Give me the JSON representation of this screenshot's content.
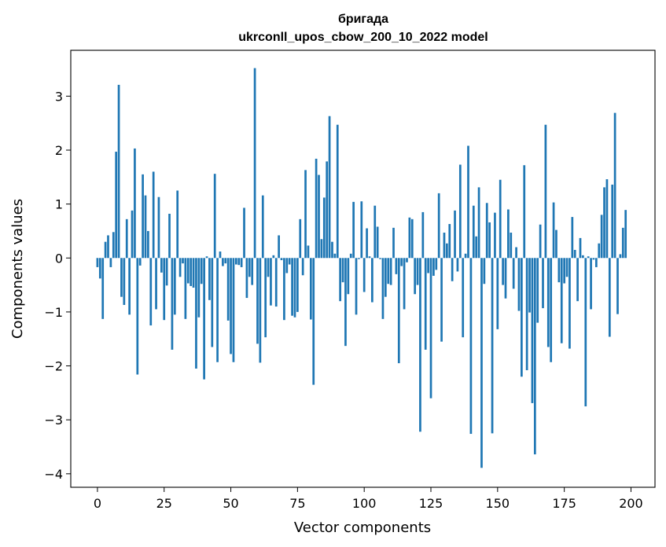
{
  "chart_data": {
    "type": "bar",
    "title_line1": "бригада",
    "title_line2": "ukrconll_upos_cbow_200_10_2022 model",
    "xlabel": "Vector components",
    "ylabel": "Components values",
    "xlim": [
      -10,
      209
    ],
    "ylim": [
      -4.25,
      3.85
    ],
    "xticks": [
      0,
      25,
      50,
      75,
      100,
      125,
      150,
      175,
      200
    ],
    "yticks": [
      -4,
      -3,
      -2,
      -1,
      0,
      1,
      2,
      3
    ],
    "ytick_labels": [
      "−4",
      "−3",
      "−2",
      "−1",
      "0",
      "1",
      "2",
      "3"
    ],
    "bar_color": "#1f77b4",
    "grid": false,
    "values": [
      -0.17,
      -0.38,
      -1.13,
      0.3,
      0.42,
      -0.17,
      0.48,
      1.97,
      3.21,
      -0.72,
      -0.87,
      0.72,
      -1.05,
      0.88,
      2.03,
      -2.16,
      -0.14,
      1.55,
      1.16,
      0.5,
      -1.25,
      1.6,
      -0.95,
      1.13,
      -0.27,
      -1.15,
      -0.51,
      0.82,
      -1.7,
      -1.05,
      1.25,
      -0.35,
      -0.1,
      -1.13,
      -0.47,
      -0.52,
      -0.55,
      -2.05,
      -1.1,
      -0.48,
      -2.25,
      0.03,
      -0.78,
      -1.65,
      1.56,
      -1.93,
      0.12,
      -0.15,
      -0.1,
      -1.16,
      -1.78,
      -1.93,
      -0.12,
      -0.13,
      -0.17,
      0.93,
      -0.74,
      -0.35,
      -0.5,
      3.52,
      -1.59,
      -1.94,
      1.16,
      -1.47,
      -0.35,
      -0.88,
      0.05,
      -0.9,
      0.42,
      -0.04,
      -1.15,
      -0.28,
      -0.12,
      -1.07,
      -1.1,
      -1.0,
      0.72,
      -0.32,
      1.63,
      0.23,
      -1.14,
      -2.35,
      1.84,
      1.54,
      0.35,
      1.12,
      1.79,
      2.63,
      0.3,
      0.08,
      2.47,
      -0.8,
      -0.45,
      -1.63,
      -0.67,
      0.08,
      1.04,
      -1.05,
      -0.02,
      1.05,
      -0.63,
      0.55,
      0.03,
      -0.82,
      0.97,
      0.58,
      -0.02,
      -1.13,
      -0.72,
      -0.48,
      -0.5,
      0.56,
      -0.3,
      -1.95,
      -0.15,
      -0.95,
      -0.08,
      0.75,
      0.72,
      -0.67,
      -0.5,
      -3.22,
      0.85,
      -1.7,
      -0.28,
      -2.6,
      -0.33,
      -0.22,
      1.2,
      -1.55,
      0.47,
      0.27,
      0.63,
      -0.43,
      0.88,
      -0.25,
      1.73,
      -1.47,
      0.08,
      2.08,
      -3.26,
      0.97,
      0.4,
      1.31,
      -3.89,
      -0.48,
      1.02,
      0.66,
      -3.25,
      0.84,
      -1.32,
      1.45,
      -0.5,
      -0.75,
      0.9,
      0.47,
      -0.57,
      0.2,
      -0.98,
      -2.2,
      1.72,
      -2.08,
      -1.01,
      -2.69,
      -3.64,
      -1.2,
      0.62,
      -0.93,
      2.47,
      -1.65,
      -1.93,
      1.03,
      0.52,
      -0.45,
      -1.58,
      -0.47,
      -0.35,
      -1.68,
      0.76,
      0.15,
      -0.8,
      0.37,
      0.05,
      -2.75,
      0.03,
      -0.95,
      -0.03,
      -0.17,
      0.27,
      0.8,
      1.31,
      1.46,
      -1.46,
      1.36,
      2.69,
      -1.04,
      0.07,
      0.56,
      0.89
    ]
  }
}
